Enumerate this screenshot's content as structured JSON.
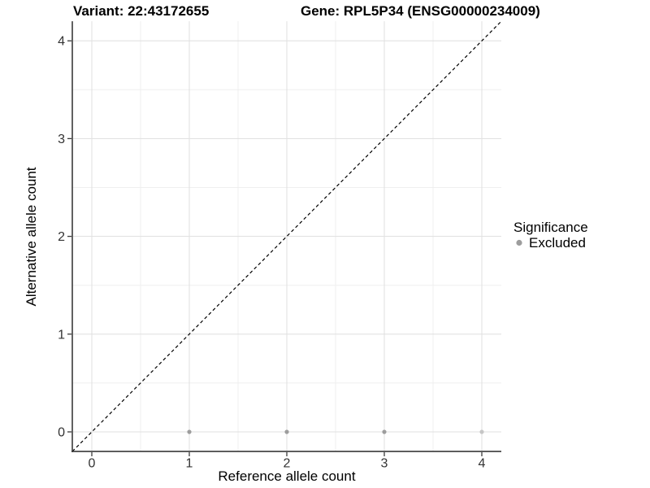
{
  "header": {
    "variant_title": "Variant: 22:43172655",
    "gene_title": "Gene: RPL5P34 (ENSG00000234009)"
  },
  "style": {
    "background": "#ffffff",
    "grid_major": "#e2e2e2",
    "grid_minor": "#efefef",
    "axis_color": "#3a3a3a",
    "tick_text_color": "#333333",
    "dash_line_color": "#000000",
    "point_color": "#9d9d9d",
    "point_color_light": "#c6c6c6"
  },
  "chart_data": {
    "type": "scatter",
    "title_left": "Variant: 22:43172655",
    "title_right": "Gene: RPL5P34 (ENSG00000234009)",
    "xlabel": "Reference allele count",
    "ylabel": "Alternative allele count",
    "xlim": [
      -0.2,
      4.2
    ],
    "ylim": [
      -0.2,
      4.2
    ],
    "x_ticks": [
      0,
      1,
      2,
      3,
      4
    ],
    "y_ticks": [
      0,
      1,
      2,
      3,
      4
    ],
    "minor_ticks": [
      0.5,
      1.5,
      2.5,
      3.5
    ],
    "grid": "on",
    "identity_line": {
      "style": "dashed",
      "color": "#000000",
      "from": [
        -0.2,
        -0.2
      ],
      "to": [
        4.2,
        4.2
      ]
    },
    "series": [
      {
        "name": "Excluded",
        "points": [
          {
            "x": 1,
            "y": 0,
            "color": "#9d9d9d"
          },
          {
            "x": 2,
            "y": 0,
            "color": "#9d9d9d"
          },
          {
            "x": 3,
            "y": 0,
            "color": "#9d9d9d"
          },
          {
            "x": 4,
            "y": 0,
            "color": "#c6c6c6"
          }
        ]
      }
    ],
    "legend": {
      "title": "Significance",
      "position": "right",
      "items": [
        {
          "label": "Excluded",
          "color": "#9d9d9d"
        }
      ]
    }
  }
}
